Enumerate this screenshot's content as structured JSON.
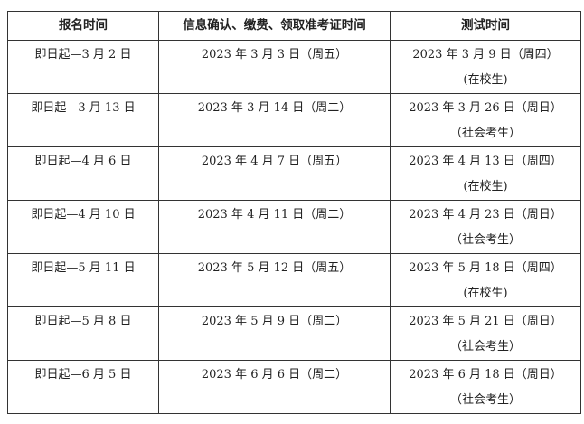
{
  "table": {
    "headers": [
      "报名时间",
      "信息确认、缴费、领取准考证时间",
      "测试时间"
    ],
    "rows": [
      {
        "registration": "即日起—3 月 2 日",
        "confirmation": "2023 年 3 月 3 日（周五）",
        "test_date": "2023 年 3 月 9 日（周四）",
        "test_group": "(在校生)"
      },
      {
        "registration": "即日起—3 月 13 日",
        "confirmation": "2023 年 3 月 14 日（周二）",
        "test_date": "2023 年 3 月 26 日（周日）",
        "test_group": "（社会考生）"
      },
      {
        "registration": "即日起—4 月 6 日",
        "confirmation": "2023 年 4 月 7 日（周五）",
        "test_date": "2023 年 4 月 13 日（周四）",
        "test_group": "(在校生)"
      },
      {
        "registration": "即日起—4 月 10 日",
        "confirmation": "2023 年 4 月 11 日（周二）",
        "test_date": "2023 年 4 月 23 日（周日）",
        "test_group": "（社会考生）"
      },
      {
        "registration": "即日起—5 月 11 日",
        "confirmation": "2023 年 5 月 12 日（周五）",
        "test_date": "2023 年 5 月 18 日（周四）",
        "test_group": "(在校生)"
      },
      {
        "registration": "即日起—5 月 8 日",
        "confirmation": "2023 年 5 月 9 日（周二）",
        "test_date": "2023 年 5 月 21 日（周日）",
        "test_group": "（社会考生）"
      },
      {
        "registration": "即日起—6 月 5 日",
        "confirmation": "2023 年 6 月 6 日（周二）",
        "test_date": "2023 年 6 月 18 日（周日）",
        "test_group": "（社会考生）"
      }
    ]
  }
}
